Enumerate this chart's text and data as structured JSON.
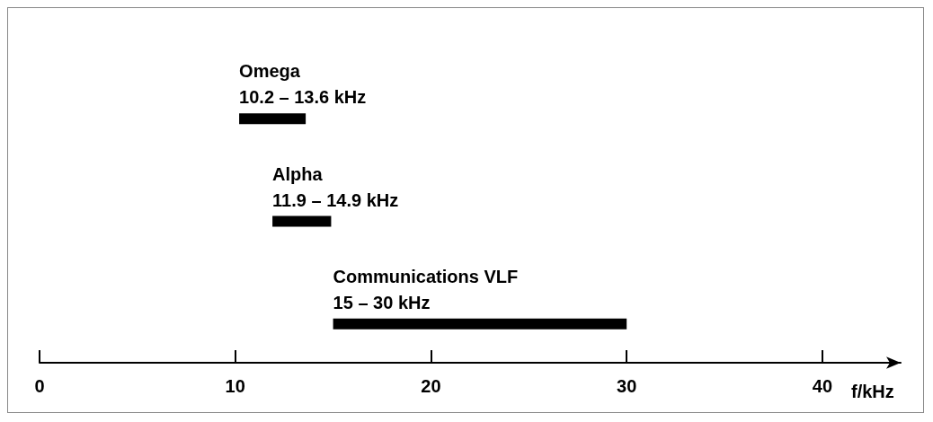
{
  "chart_data": {
    "type": "bar",
    "orientation": "horizontal",
    "categories": [
      "Omega",
      "Alpha",
      "Communications VLF"
    ],
    "base": [
      10.2,
      11.9,
      15
    ],
    "values": [
      3.4,
      3.0,
      15
    ],
    "annotations": [
      {
        "text": "10.2 – 13.6 kHz",
        "x": 10.2,
        "y": "Omega"
      },
      {
        "text": "11.9 – 14.9 kHz",
        "x": 11.9,
        "y": "Alpha"
      },
      {
        "text": "15 – 30 kHz",
        "x": 15,
        "y": "Communications VLF"
      }
    ],
    "color": "#000000",
    "xlabel": "f/kHz",
    "xlim": [
      0,
      44
    ],
    "xticks": [
      0,
      10,
      20,
      30,
      40
    ],
    "tick_labels": "x",
    "grid": false
  }
}
